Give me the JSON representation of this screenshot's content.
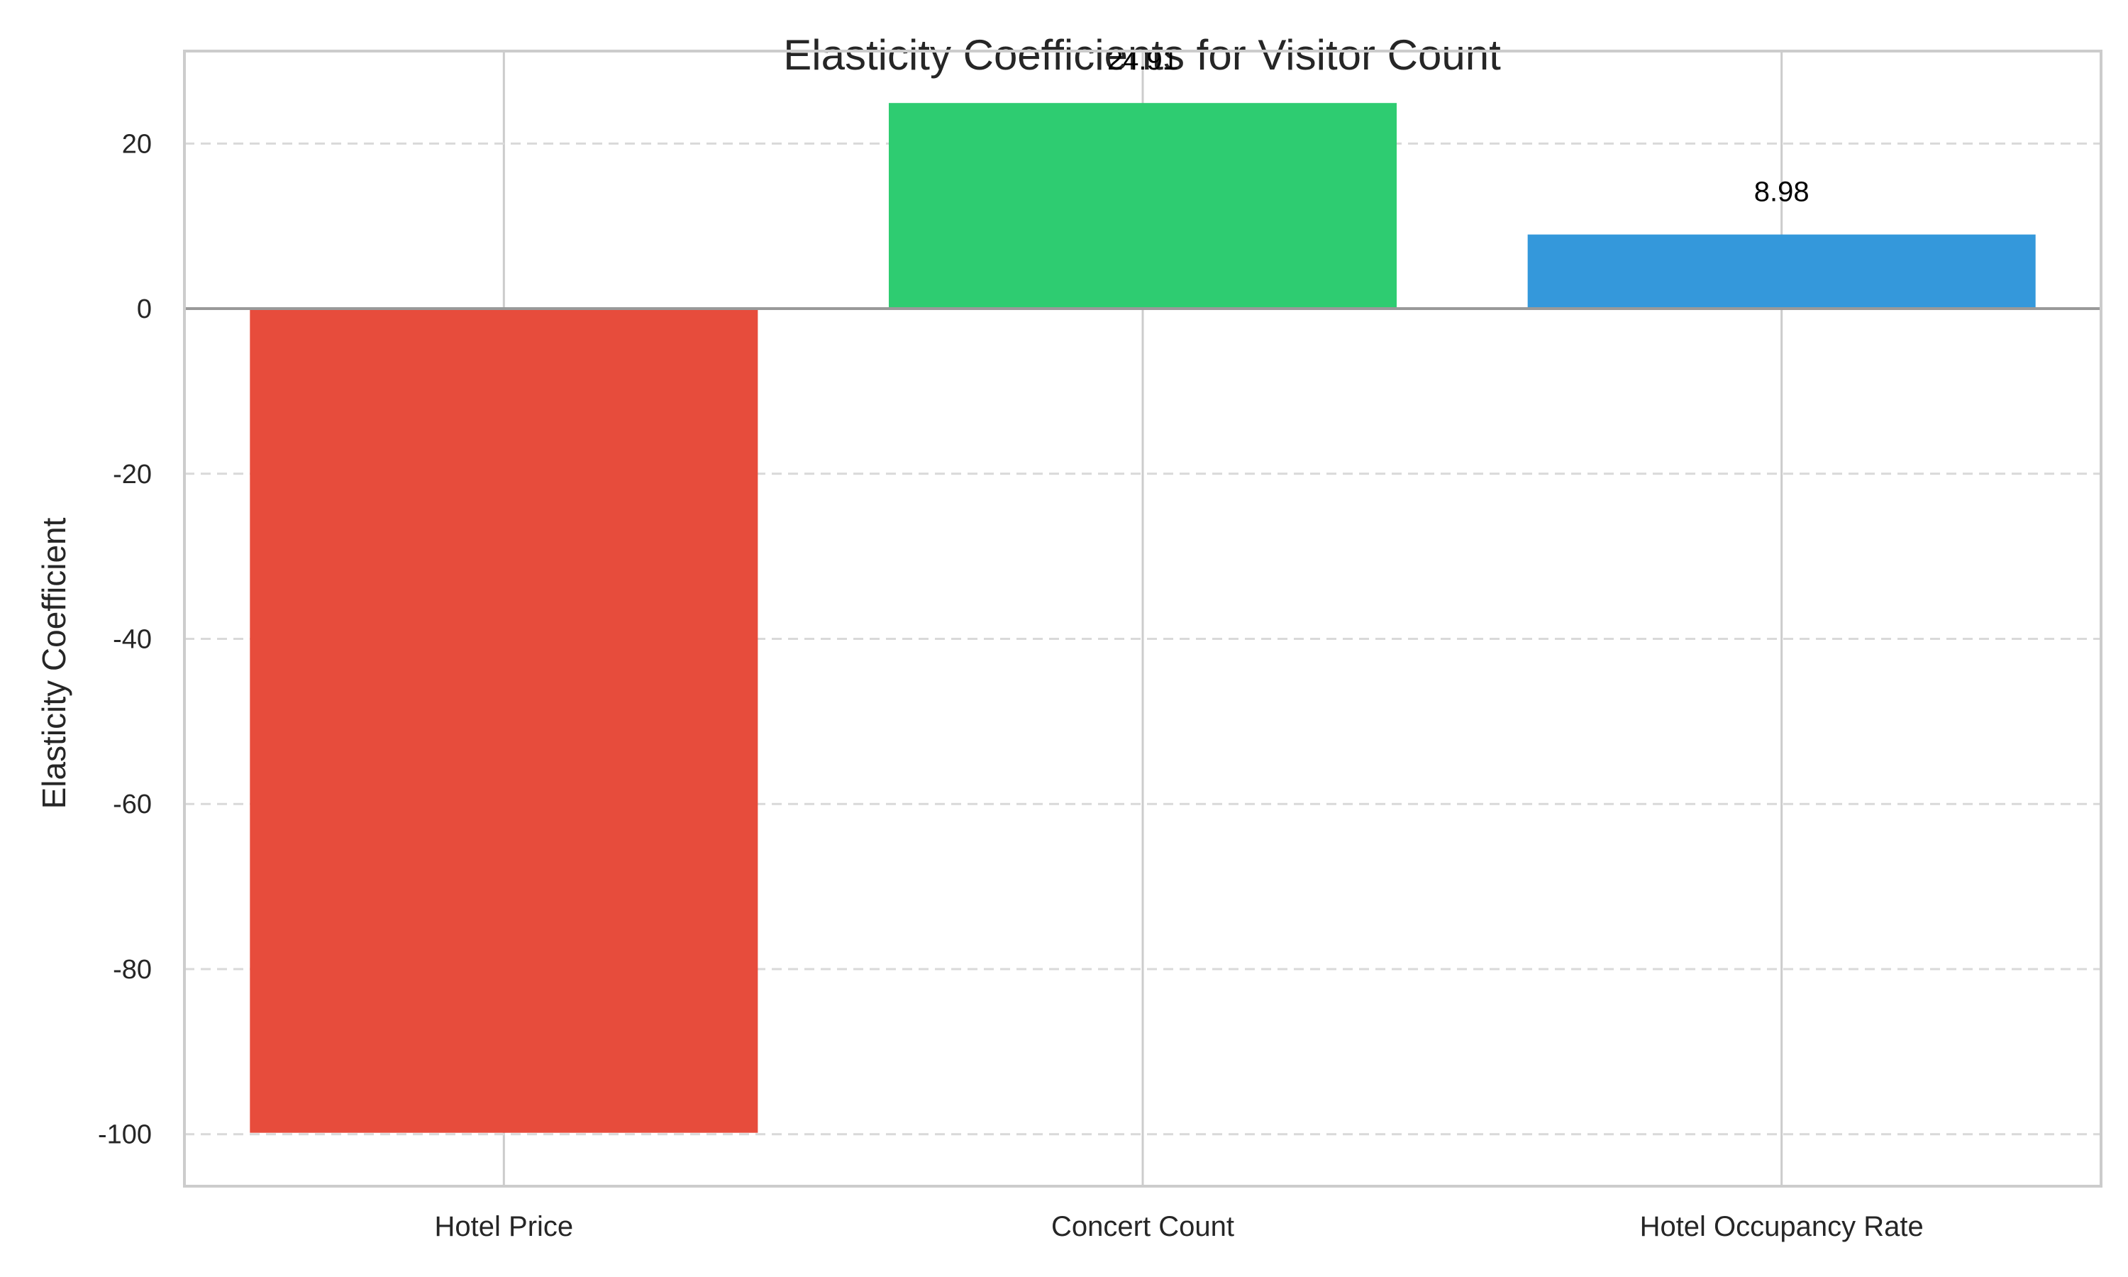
{
  "chart_data": {
    "type": "bar",
    "title": "Elasticity Coefficients for Visitor Count",
    "xlabel": "",
    "ylabel": "Elasticity Coefficient",
    "categories": [
      "Hotel Price",
      "Concert Count",
      "Hotel Occupancy Rate"
    ],
    "values": [
      -99.83,
      24.91,
      8.98
    ],
    "value_labels": [
      "",
      "24.91",
      "8.98"
    ],
    "colors": [
      "#e74c3c",
      "#2ecc71",
      "#3498db"
    ],
    "ylim": [
      -106.3,
      31.2
    ],
    "yticks": [
      -100,
      -80,
      -60,
      -40,
      -20,
      0,
      20
    ],
    "ytick_labels": [
      "-100",
      "-80",
      "-60",
      "-40",
      "-20",
      "0",
      "20"
    ],
    "zero_line": true,
    "grid": true,
    "legend": "none"
  }
}
